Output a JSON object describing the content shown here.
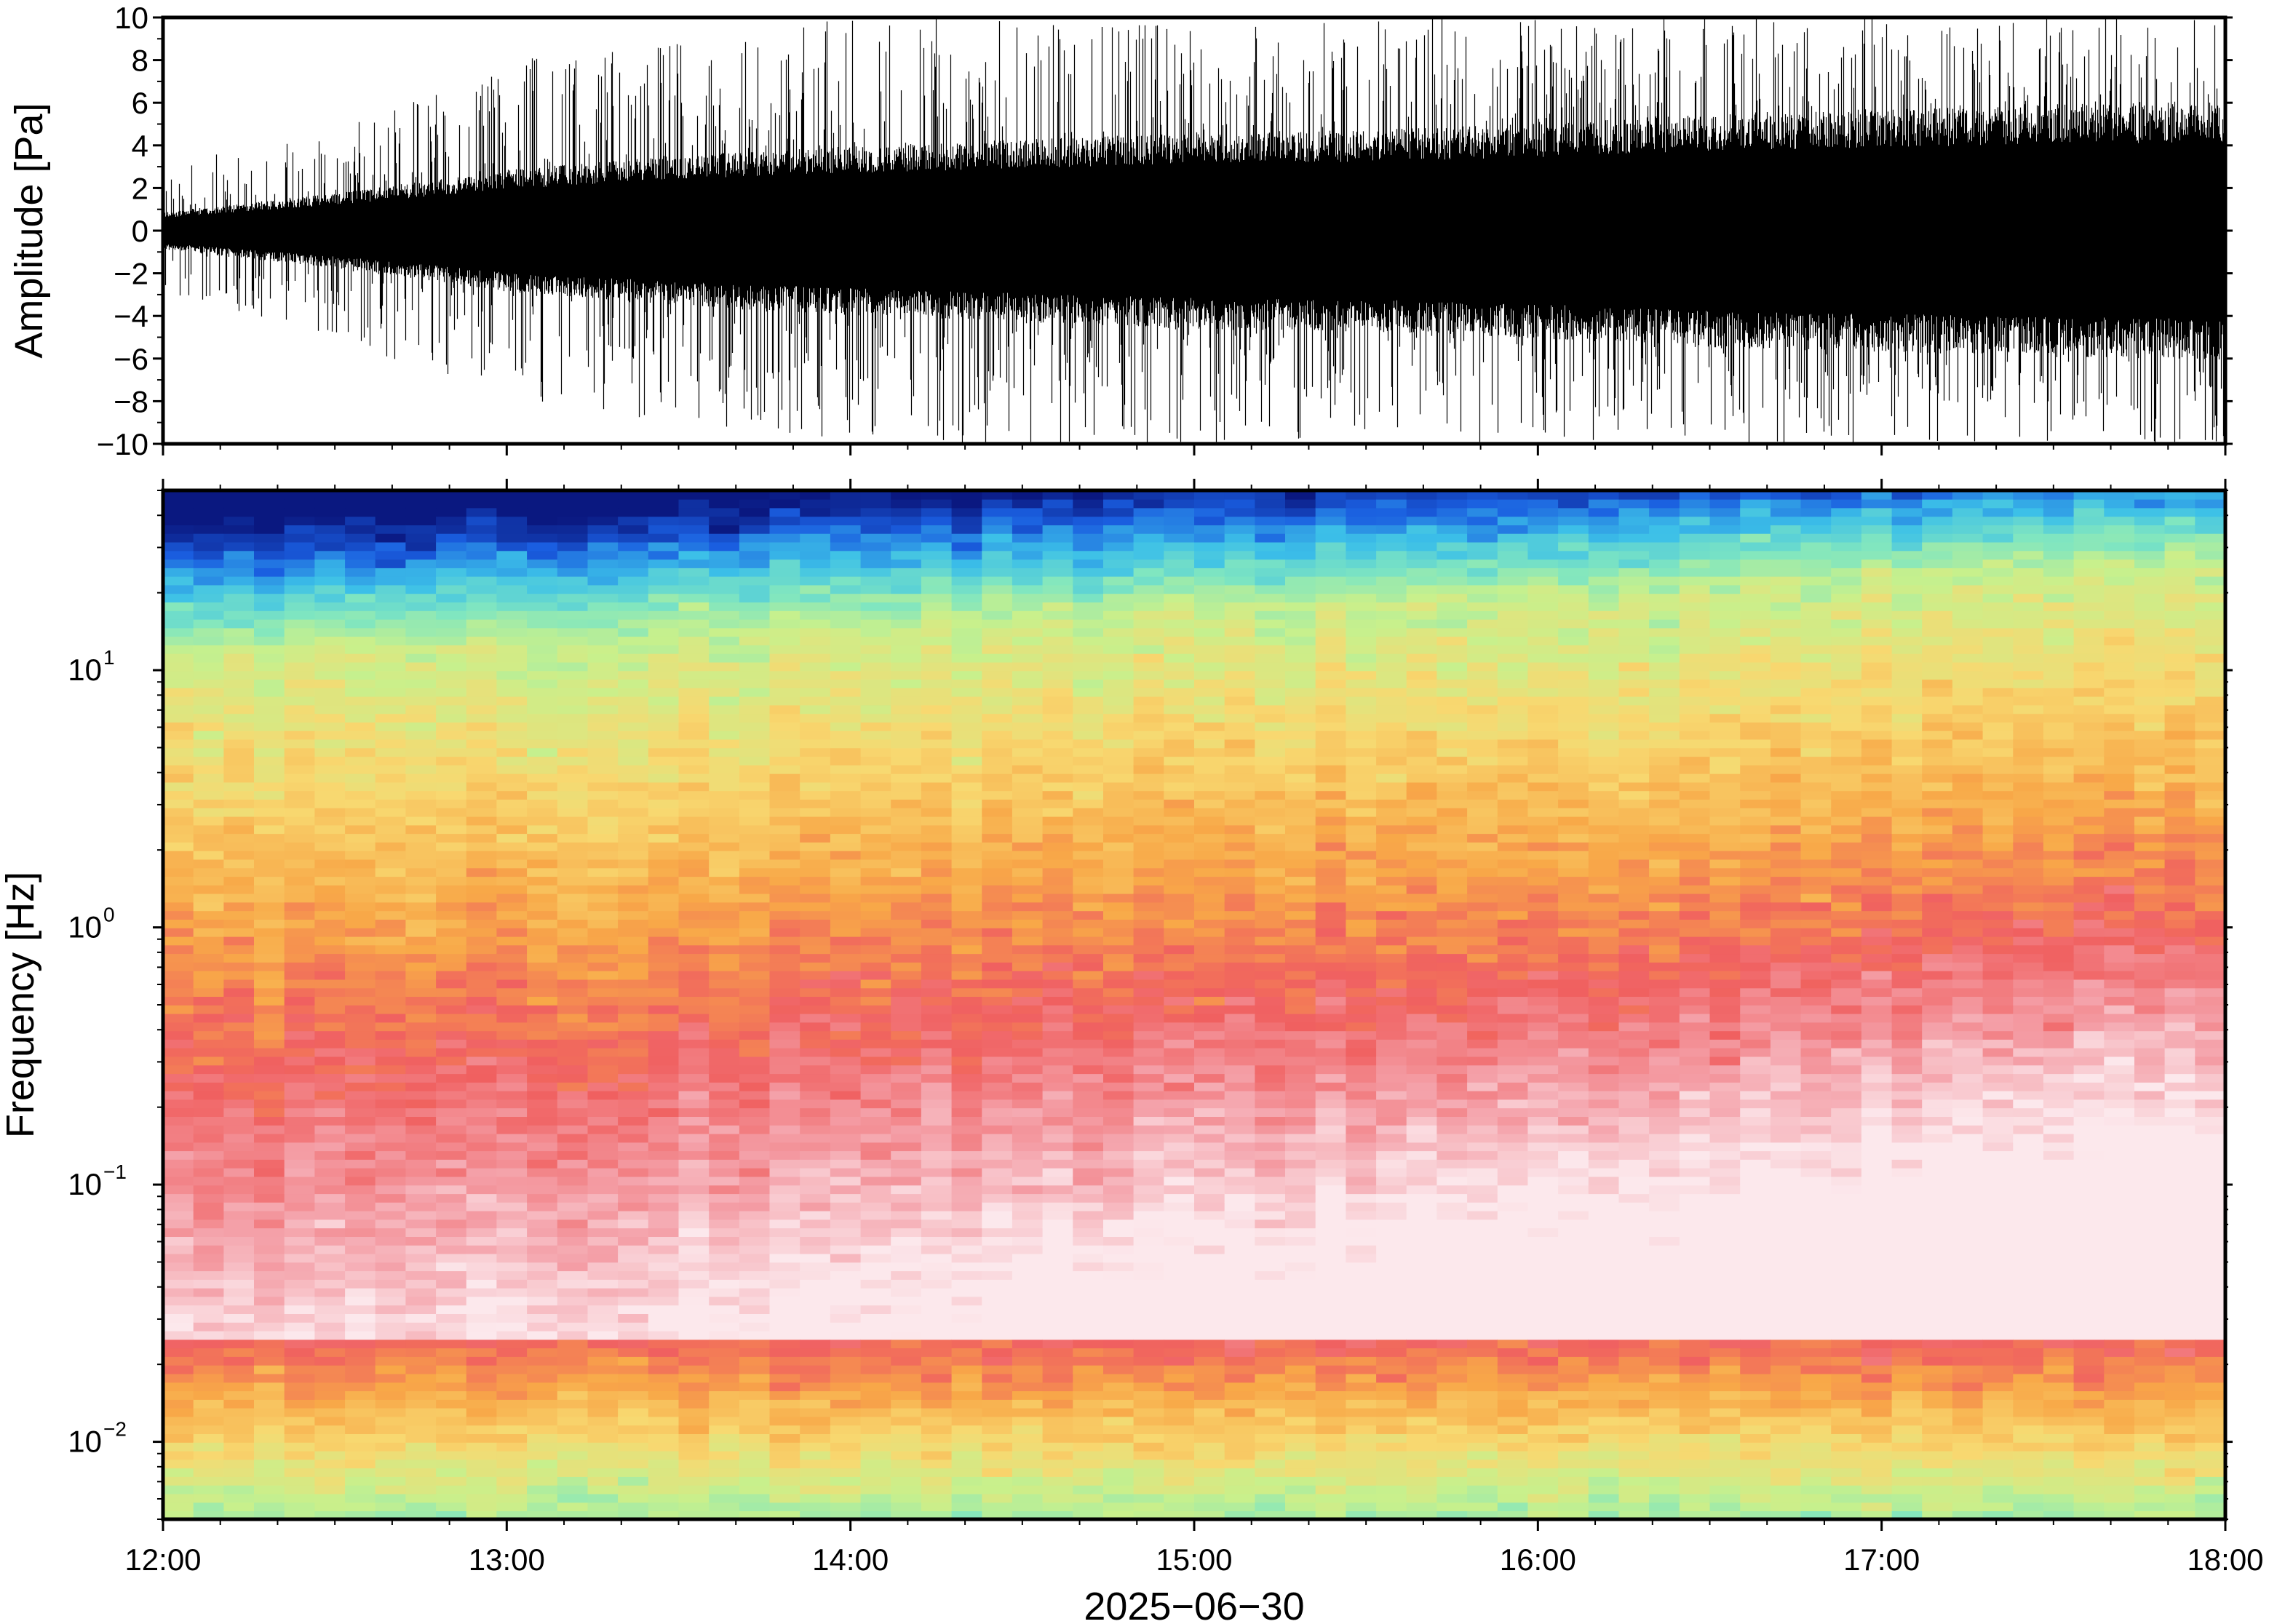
{
  "chart_data": [
    {
      "type": "line",
      "panel": "waveform",
      "ylabel": "Amplitude [Pa]",
      "ylim": [
        -10,
        10
      ],
      "yticks": [
        -10,
        -8,
        -6,
        -4,
        -2,
        0,
        2,
        4,
        6,
        8,
        10
      ],
      "ytick_labels": [
        "−10",
        "−8",
        "−6",
        "−4",
        "−2",
        "0",
        "2",
        "4",
        "6",
        "8",
        "10"
      ],
      "line_color": "#000000",
      "x_range": [
        "12:00",
        "18:00"
      ],
      "envelope": {
        "time": [
          "12:00",
          "12:30",
          "13:00",
          "13:30",
          "14:00",
          "14:30",
          "15:00",
          "15:30",
          "16:00",
          "16:30",
          "17:00",
          "17:30",
          "18:00"
        ],
        "core_amplitude": [
          0.8,
          1.6,
          2.6,
          3.2,
          3.6,
          3.9,
          4.2,
          4.3,
          4.6,
          5.0,
          5.2,
          5.4,
          5.5
        ],
        "peak_amplitude": [
          3.0,
          5.0,
          8.0,
          9.0,
          10.0,
          10.0,
          10.0,
          10.0,
          10.0,
          10.0,
          10.0,
          10.0,
          10.0
        ]
      }
    },
    {
      "type": "heatmap",
      "panel": "spectrogram",
      "ylabel": "Frequency [Hz]",
      "xlabel": "2025−06−30",
      "y_scale": "log",
      "ylim": [
        0.005,
        50
      ],
      "ytick_labels": [
        {
          "base": "10",
          "exp": "−2",
          "value": 0.01
        },
        {
          "base": "10",
          "exp": "−1",
          "value": 0.1
        },
        {
          "base": "10",
          "exp": "0",
          "value": 1
        },
        {
          "base": "10",
          "exp": "1",
          "value": 10
        }
      ],
      "x_tick_labels": [
        "12:00",
        "13:00",
        "14:00",
        "15:00",
        "16:00",
        "17:00",
        "18:00"
      ],
      "colormap": "spectral",
      "colormap_stops": [
        "#0a1880",
        "#1a5ee0",
        "#3cc0e8",
        "#80e6c0",
        "#c8f08c",
        "#f8d870",
        "#f8a848",
        "#f06060",
        "#f4a0a8",
        "#fce8ec"
      ]
    }
  ]
}
